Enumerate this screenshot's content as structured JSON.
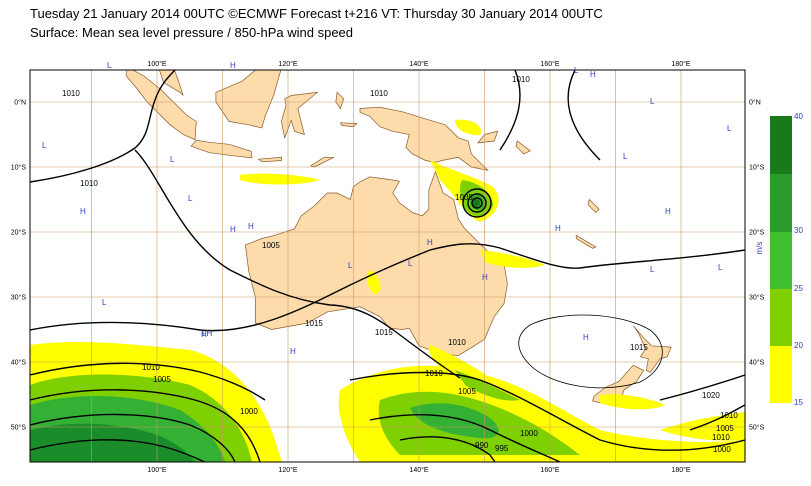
{
  "header": {
    "title": "Tuesday 21 January 2014 00UTC ©ECMWF Forecast t+216 VT: Thursday 30 January 2014 00UTC",
    "subtitle": "Surface: Mean sea level pressure / 850-hPa wind speed"
  },
  "map": {
    "lon_labels_top": [
      "100°E",
      "120°E",
      "140°E",
      "160°E",
      "180°E"
    ],
    "lon_labels_bottom": [
      "100°E",
      "120°E",
      "140°E",
      "160°E",
      "180°E"
    ],
    "lat_labels_left": [
      "0°N",
      "10°S",
      "20°S",
      "30°S",
      "40°S",
      "50°S"
    ],
    "lat_labels_right": [
      "0°N",
      "10°S",
      "20°S",
      "30°S",
      "40°S",
      "50°S"
    ],
    "isobar_labels": [
      "1010",
      "1010",
      "1010",
      "1010",
      "1005",
      "1005",
      "1015",
      "1010",
      "1010",
      "1005",
      "1000",
      "1010",
      "1015",
      "1010",
      "1005",
      "1000",
      "995",
      "990",
      "1020",
      "1015",
      "1010",
      "1005",
      "1000"
    ],
    "pressure_centres": [
      "L",
      "H",
      "L",
      "H",
      "L",
      "L",
      "H",
      "L",
      "H",
      "L",
      "H",
      "L",
      "H",
      "H",
      "H",
      "L",
      "L",
      "H",
      "H",
      "L",
      "H",
      "L",
      "L",
      "H",
      "LH",
      "L"
    ]
  },
  "colorbar": {
    "labels": [
      "40",
      "30",
      "25",
      "20",
      "15"
    ],
    "unit": "m/s"
  }
}
